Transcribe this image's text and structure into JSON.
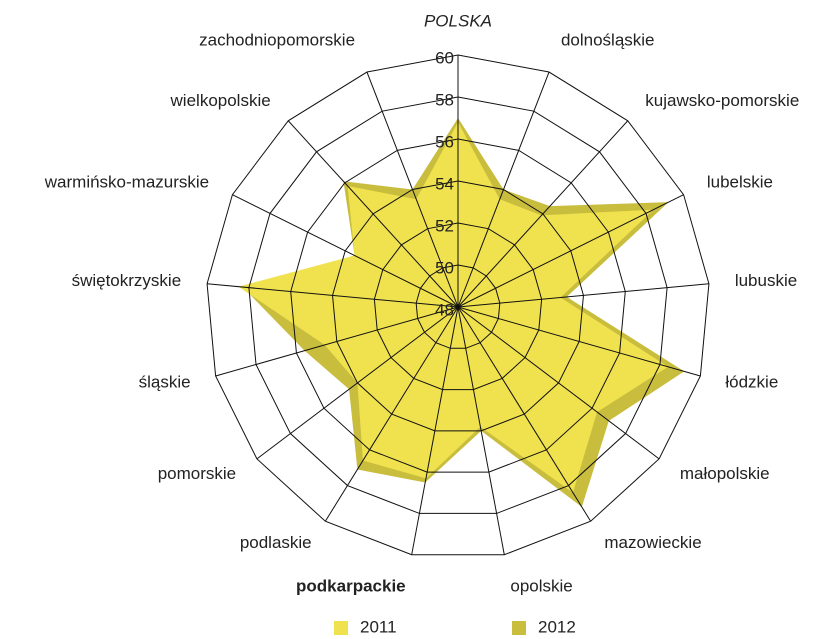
{
  "chart_data": {
    "type": "radar",
    "categories": [
      "POLSKA",
      "dolnośląskie",
      "kujawsko-pomorskie",
      "lubelskie",
      "lubuskie",
      "łódzkie",
      "małopolskie",
      "mazowieckie",
      "opolskie",
      "podkarpackie",
      "podlaskie",
      "pomorskie",
      "śląskie",
      "świętokrzyskie",
      "warmińsko-mazurskie",
      "wielkopolskie",
      "zachodniopomorskie"
    ],
    "series": [
      {
        "name": "2011",
        "color": "#f0e24e",
        "values": [
          56.8,
          53.5,
          53.9,
          58.4,
          52.9,
          58.4,
          56.3,
          58.4,
          53.8,
          56.3,
          56.6,
          54.0,
          54.6,
          58.5,
          53.5,
          55.8,
          53.5
        ]
      },
      {
        "name": "2012",
        "color": "#c9bd3e",
        "values": [
          57.0,
          54.0,
          54.5,
          59.2,
          53.2,
          59.2,
          57.0,
          59.2,
          54.0,
          56.5,
          57.1,
          54.5,
          55.6,
          58.3,
          53.5,
          56.1,
          54.0
        ]
      }
    ],
    "ylim": [
      48,
      60
    ],
    "yticks": [
      48,
      50,
      52,
      54,
      56,
      58,
      60
    ],
    "italic_category": 0,
    "bold_category": 9,
    "legend": "bottom"
  }
}
